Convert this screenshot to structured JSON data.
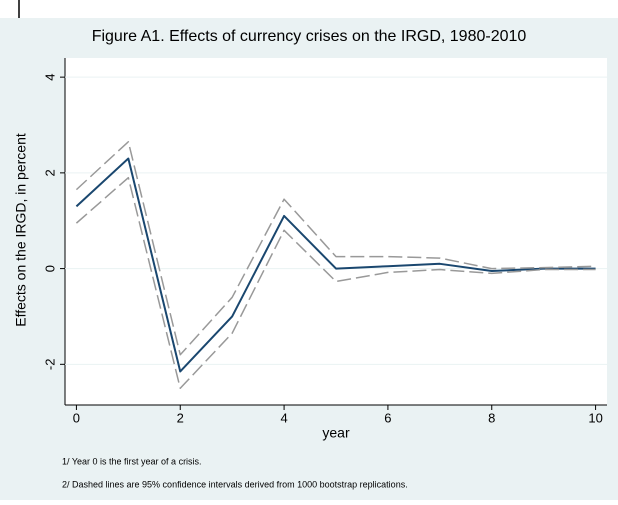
{
  "chart_data": {
    "type": "line",
    "title": "Figure A1. Effects of currency crises on the IRGD, 1980-2010",
    "x_label": "year",
    "y_label": "Effects on the IRGD, in percent",
    "notes": [
      "1/ Year 0 is the first year of a crisis.",
      "2/  Dashed lines are 95% confidence intervals derived from 1000 bootstrap replications."
    ],
    "x": [
      0,
      1,
      2,
      3,
      4,
      5,
      6,
      7,
      8,
      9,
      10
    ],
    "series": [
      {
        "color": "#1a476f",
        "dashed": false,
        "values": [
          1.3,
          2.3,
          -2.15,
          -1.0,
          1.1,
          0.0,
          0.05,
          0.1,
          -0.05,
          0.0,
          0.0
        ]
      },
      {
        "color": "#999999",
        "dashed": true,
        "values": [
          1.65,
          2.65,
          -1.8,
          -0.6,
          1.45,
          0.25,
          0.25,
          0.22,
          0.0,
          0.02,
          0.05
        ]
      },
      {
        "color": "#999999",
        "dashed": true,
        "values": [
          0.95,
          1.9,
          -2.5,
          -1.35,
          0.8,
          -0.27,
          -0.08,
          -0.02,
          -0.1,
          -0.02,
          -0.02
        ]
      }
    ],
    "xlim": [
      -0.22,
      10.22
    ],
    "xticks": [
      0,
      2,
      4,
      6,
      8,
      10
    ],
    "ylim": [
      -2.85,
      4.4
    ],
    "yticks": [
      -2,
      0,
      2,
      4
    ],
    "grid": true
  }
}
